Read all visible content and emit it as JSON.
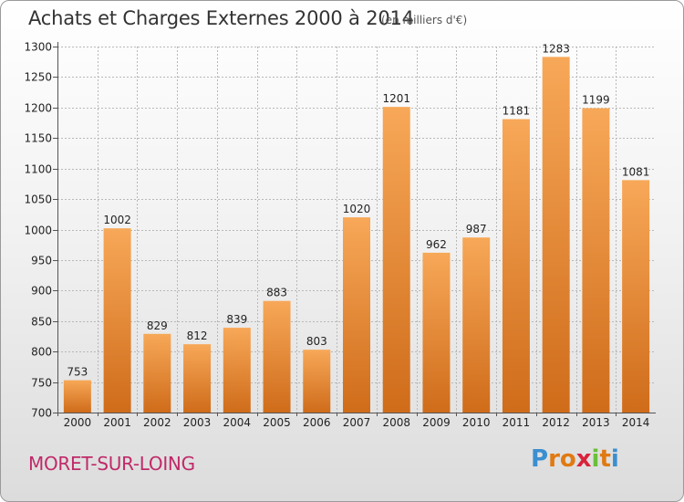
{
  "header": {
    "title": "Achats et Charges Externes 2000 à 2014",
    "unit_note": "(en milliers d'€)"
  },
  "footer": {
    "city": "MORET-SUR-LOING",
    "logo": [
      "P",
      "r",
      "o",
      "x",
      "i",
      "t",
      "i"
    ],
    "logo_colors": [
      "#3a8fd0",
      "#e07a12",
      "#e07a12",
      "#d9233a",
      "#6bbf3a",
      "#e07a12",
      "#3a8fd0"
    ]
  },
  "colors": {
    "bar_top": "#f7a858",
    "bar_bottom": "#cf6c1a",
    "grid": "#b8b8b8",
    "axis": "#555555"
  },
  "chart_data": {
    "type": "bar",
    "title": "Achats et Charges Externes 2000 à 2014",
    "subtitle": "(en milliers d'€)",
    "categories": [
      "2000",
      "2001",
      "2002",
      "2003",
      "2004",
      "2005",
      "2006",
      "2007",
      "2008",
      "2009",
      "2010",
      "2011",
      "2012",
      "2013",
      "2014"
    ],
    "values": [
      753,
      1002,
      829,
      812,
      839,
      883,
      803,
      1020,
      1201,
      962,
      987,
      1181,
      1283,
      1199,
      1081
    ],
    "data_labels": [
      "753",
      "1002",
      "829",
      "812",
      "839",
      "883",
      "803",
      "1020",
      "1201",
      "962",
      "987",
      "1181",
      "1283",
      "1199",
      "1081"
    ],
    "ylim": [
      700,
      1300
    ],
    "yticks": [
      700,
      750,
      800,
      850,
      900,
      950,
      1000,
      1050,
      1100,
      1150,
      1200,
      1250,
      1300
    ],
    "ytick_labels": [
      "700",
      "750",
      "800",
      "850",
      "900",
      "950",
      "1000",
      "1050",
      "1100",
      "1150",
      "1200",
      "1250",
      "1300"
    ],
    "grid": true,
    "xlabel": "",
    "ylabel": ""
  }
}
